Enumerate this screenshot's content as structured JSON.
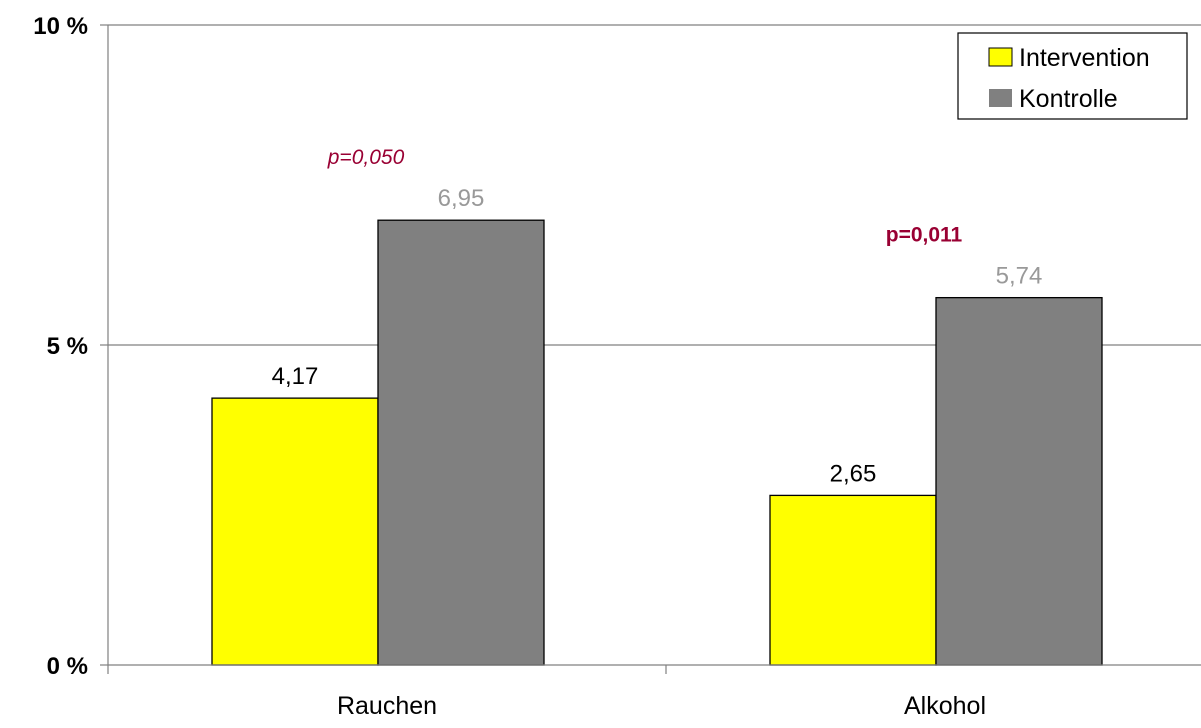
{
  "chart_data": {
    "type": "bar",
    "categories": [
      "Rauchen",
      "Alkohol"
    ],
    "series": [
      {
        "name": "Intervention",
        "values": [
          4.17,
          2.65
        ],
        "labels": [
          "4,17",
          "2,65"
        ],
        "color": "#ffff00",
        "label_color": "#000000"
      },
      {
        "name": "Kontrolle",
        "values": [
          6.95,
          5.74
        ],
        "labels": [
          "6,95",
          "5,74"
        ],
        "color": "#808080",
        "label_color": "#999999"
      }
    ],
    "ylim": [
      0,
      10
    ],
    "yticks": [
      {
        "value": 0,
        "label": "0 %"
      },
      {
        "value": 5,
        "label": "5 %"
      },
      {
        "value": 10,
        "label": "10 %"
      }
    ],
    "annotations": [
      {
        "category": "Rauchen",
        "text": "p=0,050",
        "style": "italic"
      },
      {
        "category": "Alkohol",
        "text": "p=0,011",
        "style": "bold"
      }
    ],
    "annotation_color": "#990033",
    "grid": true,
    "legend_position": "top-right",
    "title": "",
    "xlabel": "",
    "ylabel": ""
  }
}
